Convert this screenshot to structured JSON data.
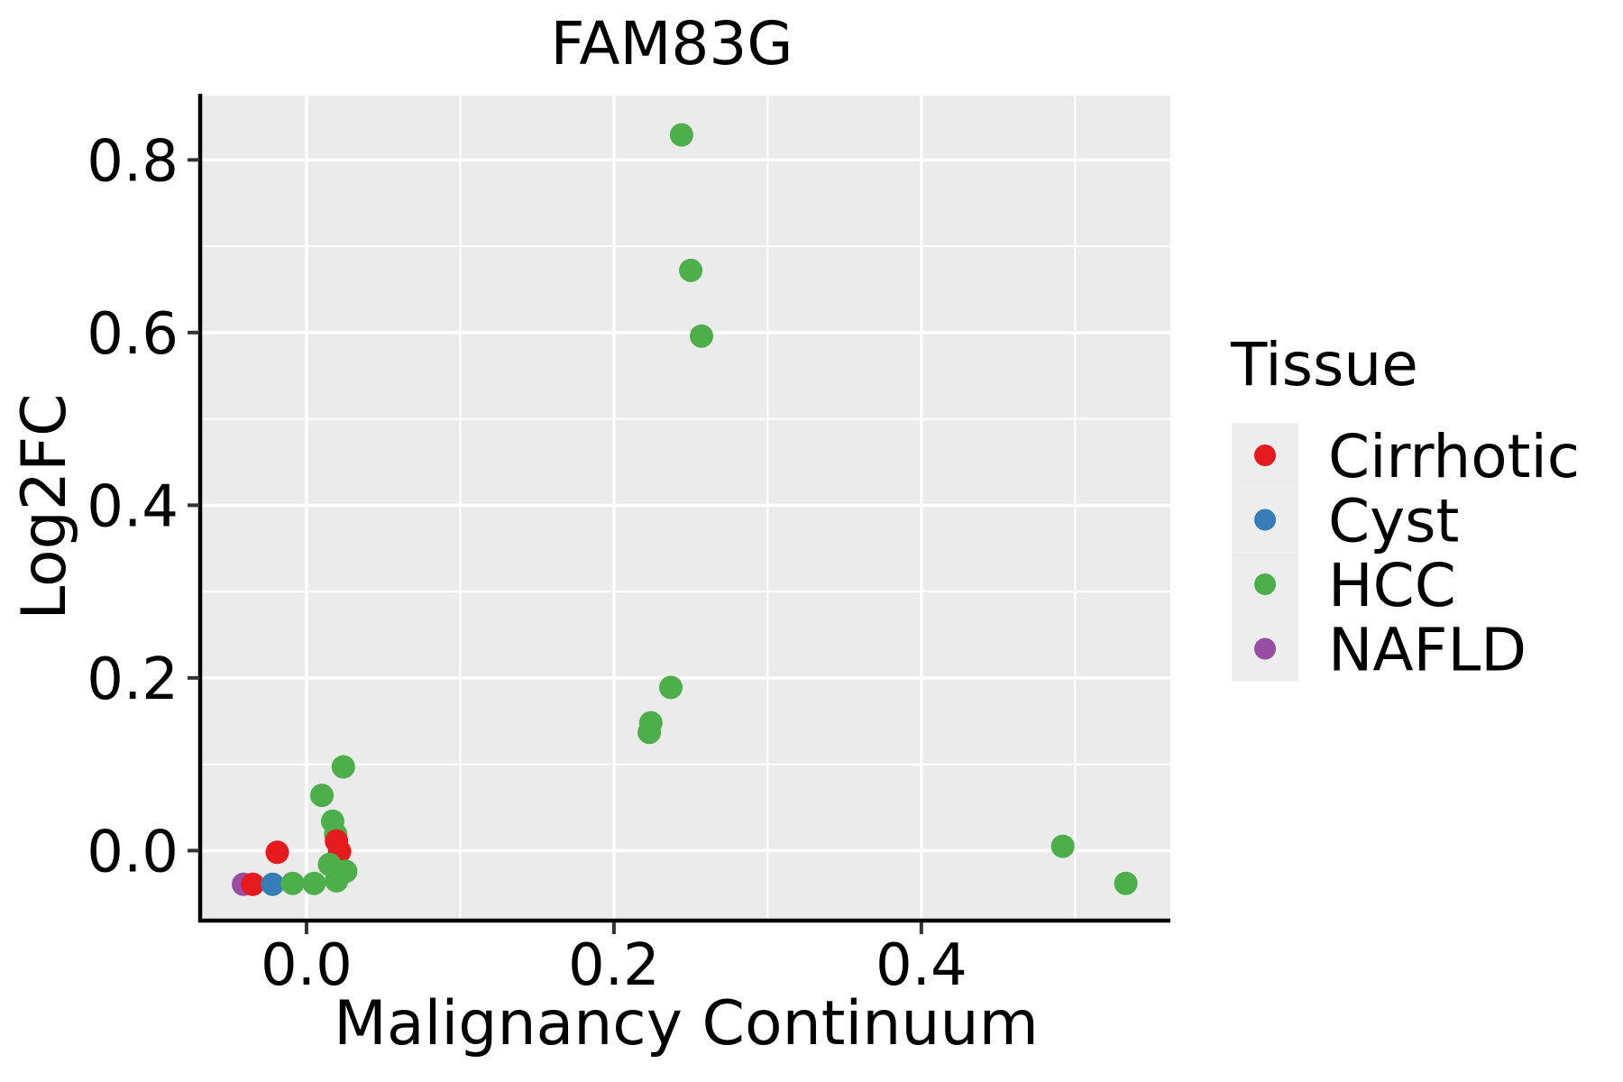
{
  "colors": {
    "panel_background": "#EBEBEB",
    "gridline": "#FFFFFF",
    "axis_line": "#000000",
    "tick_mark": "#333333",
    "legend_key_background": "#EDEDED",
    "text": "#000000",
    "cirrhotic": "#E41A1C",
    "cyst": "#377EB8",
    "hcc": "#4DAF4A",
    "nafld": "#984EA3"
  },
  "legend": {
    "title": "Tissue",
    "entries": [
      {
        "label": "Cirrhotic",
        "color": "#E41A1C",
        "icon": "dot-icon"
      },
      {
        "label": "Cyst",
        "color": "#377EB8",
        "icon": "dot-icon"
      },
      {
        "label": "HCC",
        "color": "#4DAF4A",
        "icon": "dot-icon"
      },
      {
        "label": "NAFLD",
        "color": "#984EA3",
        "icon": "dot-icon"
      }
    ]
  },
  "chart_data": {
    "type": "scatter",
    "title": "FAM83G",
    "xlabel": "Malignancy Continuum",
    "ylabel": "Log2FC",
    "xlim": [
      -0.068,
      0.562
    ],
    "ylim": [
      -0.079,
      0.8745
    ],
    "x_ticks": [
      0.0,
      0.2,
      0.4
    ],
    "x_tick_labels": [
      "0.0",
      "0.2",
      "0.4"
    ],
    "x_minor_ticks": [
      0.1,
      0.3,
      0.5
    ],
    "y_ticks": [
      0.0,
      0.2,
      0.4,
      0.6,
      0.8
    ],
    "y_tick_labels": [
      "0.0",
      "0.2",
      "0.4",
      "0.6",
      "0.8"
    ],
    "y_minor_ticks": [
      0.1,
      0.3,
      0.5,
      0.7
    ],
    "grid": true,
    "legend_position": "right",
    "marker_radius_px": 13,
    "series": [
      {
        "name": "Cirrhotic",
        "color": "#E41A1C",
        "points": [
          [
            -0.035,
            -0.039,
            17
          ],
          [
            -0.019,
            -0.002,
            21
          ],
          [
            0.0195,
            0.011,
            11
          ],
          [
            0.0215,
            -0.001,
            12
          ]
        ]
      },
      {
        "name": "Cyst",
        "color": "#377EB8",
        "points": [
          [
            -0.022,
            -0.039,
            18
          ]
        ]
      },
      {
        "name": "HCC",
        "color": "#4DAF4A",
        "points": [
          [
            -0.009,
            -0.038,
            19
          ],
          [
            0.005,
            -0.038,
            20
          ],
          [
            0.01,
            0.064,
            8
          ],
          [
            0.015,
            -0.016,
            13
          ],
          [
            0.017,
            0.034,
            9
          ],
          [
            0.019,
            0.019,
            10
          ],
          [
            0.0195,
            -0.035,
            15
          ],
          [
            0.024,
            0.097,
            7
          ],
          [
            0.0255,
            -0.024,
            14
          ],
          [
            0.223,
            0.137,
            6
          ],
          [
            0.224,
            0.148,
            5
          ],
          [
            0.237,
            0.189,
            4
          ],
          [
            0.244,
            0.829,
            1
          ],
          [
            0.25,
            0.672,
            2
          ],
          [
            0.257,
            0.596,
            3
          ],
          [
            0.492,
            0.005,
            22
          ],
          [
            0.533,
            -0.038,
            23
          ]
        ]
      },
      {
        "name": "NAFLD",
        "color": "#984EA3",
        "points": [
          [
            -0.041,
            -0.039,
            16
          ]
        ]
      }
    ]
  }
}
